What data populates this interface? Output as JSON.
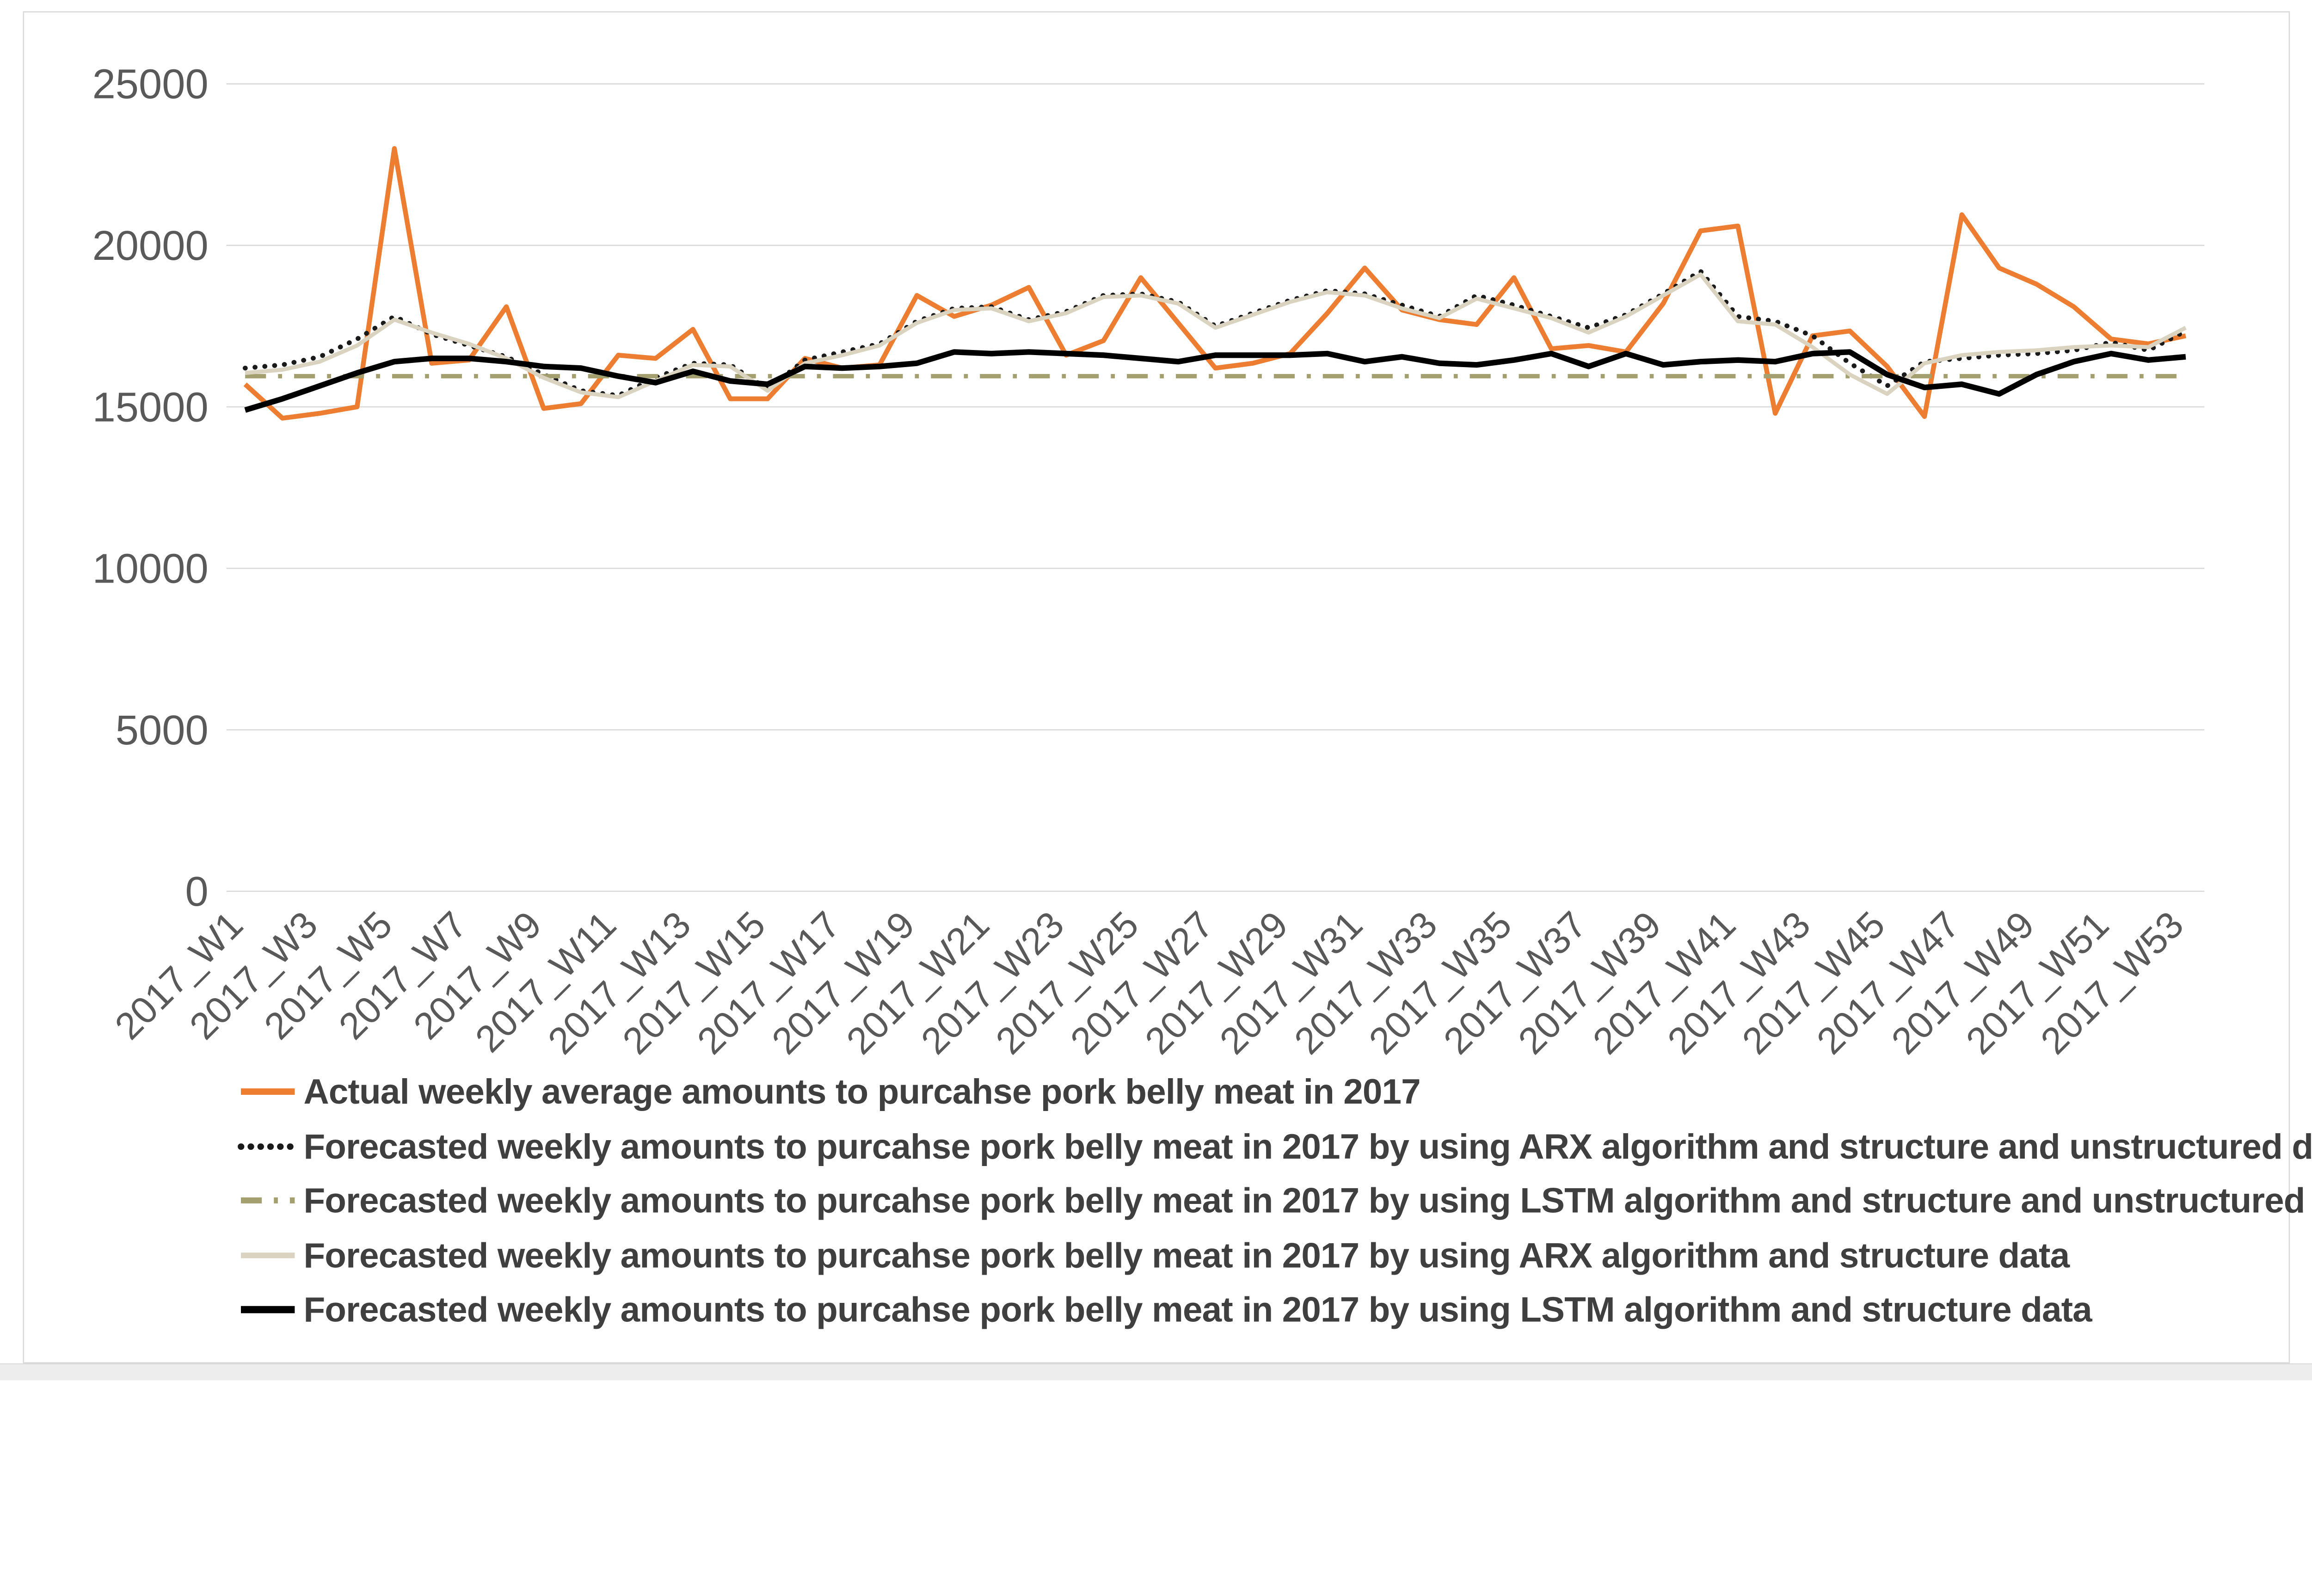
{
  "page": {
    "background_color": "#ffffff",
    "card_border_color": "#d9d9d9",
    "bottom_bar_color": "#ededed"
  },
  "chart_data": {
    "type": "line",
    "title": "",
    "xlabel": "",
    "ylabel": "",
    "grid": true,
    "grid_color": "#d9d9d9",
    "legend_position": "bottom-left",
    "axis_label_color": "#595959",
    "legend_text_color": "#3f3f3f",
    "y_axis": {
      "min": 0,
      "max": 25000,
      "tick_labels": [
        "25000",
        "20000",
        "15000",
        "10000",
        "5000",
        "0"
      ],
      "tick_values": [
        25000,
        20000,
        15000,
        10000,
        5000,
        0
      ]
    },
    "x_axis": {
      "categories": [
        "2017_W1",
        "2017_W2",
        "2017_W3",
        "2017_W4",
        "2017_W5",
        "2017_W6",
        "2017_W7",
        "2017_W8",
        "2017_W9",
        "2017_W10",
        "2017_W11",
        "2017_W12",
        "2017_W13",
        "2017_W14",
        "2017_W15",
        "2017_W16",
        "2017_W17",
        "2017_W18",
        "2017_W19",
        "2017_W20",
        "2017_W21",
        "2017_W22",
        "2017_W23",
        "2017_W24",
        "2017_W25",
        "2017_W26",
        "2017_W27",
        "2017_W28",
        "2017_W29",
        "2017_W30",
        "2017_W31",
        "2017_W32",
        "2017_W33",
        "2017_W34",
        "2017_W35",
        "2017_W36",
        "2017_W37",
        "2017_W38",
        "2017_W39",
        "2017_W40",
        "2017_W41",
        "2017_W42",
        "2017_W43",
        "2017_W44",
        "2017_W45",
        "2017_W46",
        "2017_W47",
        "2017_W48",
        "2017_W49",
        "2017_W50",
        "2017_W51",
        "2017_W52",
        "2017_W53"
      ],
      "tick_labels": [
        "2017_W1",
        "2017_W3",
        "2017_W5",
        "2017_W7",
        "2017_W9",
        "2017_W11",
        "2017_W13",
        "2017_W15",
        "2017_W17",
        "2017_W19",
        "2017_W21",
        "2017_W23",
        "2017_W25",
        "2017_W27",
        "2017_W29",
        "2017_W31",
        "2017_W33",
        "2017_W35",
        "2017_W37",
        "2017_W39",
        "2017_W41",
        "2017_W43",
        "2017_W45",
        "2017_W47",
        "2017_W49",
        "2017_W51",
        "2017_W53"
      ],
      "label_rotation_deg": -45
    },
    "series": [
      {
        "label": "Actual weekly average amounts to purcahse pork belly meat in 2017",
        "color": "#ED7D31",
        "line_style": "solid",
        "width": 12,
        "values": [
          15700,
          14650,
          14800,
          15000,
          23000,
          16350,
          16450,
          18100,
          14950,
          15100,
          16600,
          16500,
          17400,
          15250,
          15250,
          16500,
          16200,
          16300,
          18450,
          17800,
          18150,
          18700,
          16600,
          17050,
          19000,
          17600,
          16200,
          16350,
          16650,
          17900,
          19300,
          18000,
          17700,
          17550,
          19000,
          16800,
          16900,
          16700,
          18200,
          20450,
          20600,
          14800,
          17200,
          17350,
          16250,
          14700,
          20950,
          19300,
          18800,
          18100,
          17100,
          16950,
          17200
        ]
      },
      {
        "label": "Forecasted weekly amounts to purcahse pork belly meat in 2017 by using ARX algorithm and structure and unstructured data",
        "color": "#1a1a1a",
        "line_style": "dotted",
        "width": 12,
        "values": [
          16200,
          16300,
          16550,
          17100,
          17800,
          17250,
          16900,
          16550,
          16000,
          15500,
          15350,
          15900,
          16350,
          16300,
          15550,
          16450,
          16700,
          16950,
          17650,
          18050,
          18100,
          17700,
          17950,
          18450,
          18500,
          18250,
          17500,
          17900,
          18300,
          18600,
          18500,
          18150,
          17800,
          18450,
          18150,
          17800,
          17450,
          17850,
          18500,
          19200,
          17800,
          17650,
          17200,
          16350,
          15650,
          16400,
          16500,
          16600,
          16650,
          16750,
          17000,
          16750,
          17350
        ]
      },
      {
        "label": "Forecasted weekly amounts to purcahse pork belly meat in 2017 by using LSTM algorithm and structure and unstructured data",
        "color": "#A49F6E",
        "line_style": "dashdot",
        "width": 11,
        "values": [
          15950,
          15950,
          15950,
          15950,
          15950,
          15950,
          15950,
          15950,
          15950,
          15950,
          15950,
          15950,
          15950,
          15950,
          15950,
          15950,
          15950,
          15950,
          15950,
          15950,
          15950,
          15950,
          15950,
          15950,
          15950,
          15950,
          15950,
          15950,
          15950,
          15950,
          15950,
          15950,
          15950,
          15950,
          15950,
          15950,
          15950,
          15950,
          15950,
          15950,
          15950,
          15950,
          15950,
          15950,
          15950,
          15950,
          15950,
          15950,
          15950,
          15950,
          15950,
          15950,
          15950
        ]
      },
      {
        "label": "Forecasted weekly amounts to purcahse pork belly meat in 2017 by using ARX algorithm and structure data",
        "color": "#D9D3BF",
        "line_style": "solid",
        "width": 10,
        "values": [
          16050,
          16150,
          16400,
          16900,
          17700,
          17300,
          16950,
          16500,
          15900,
          15450,
          15300,
          15800,
          16300,
          16250,
          15500,
          16350,
          16600,
          16900,
          17600,
          18000,
          18050,
          17650,
          17900,
          18400,
          18450,
          18200,
          17450,
          17850,
          18250,
          18550,
          18450,
          18050,
          17750,
          18350,
          18050,
          17750,
          17300,
          17800,
          18450,
          19100,
          17650,
          17550,
          16850,
          16000,
          15400,
          16350,
          16600,
          16700,
          16750,
          16850,
          16900,
          16850,
          17450
        ]
      },
      {
        "label": "Forecasted weekly amounts to purcahse pork belly meat in 2017 by using LSTM algorithm and structure data",
        "color": "#000000",
        "line_style": "solid",
        "width": 14,
        "values": [
          14900,
          15250,
          15650,
          16050,
          16400,
          16500,
          16500,
          16400,
          16250,
          16200,
          15950,
          15750,
          16100,
          15800,
          15700,
          16250,
          16200,
          16250,
          16350,
          16700,
          16650,
          16700,
          16650,
          16600,
          16500,
          16400,
          16600,
          16600,
          16600,
          16650,
          16400,
          16550,
          16350,
          16300,
          16450,
          16650,
          16250,
          16650,
          16300,
          16400,
          16450,
          16400,
          16650,
          16700,
          16000,
          15600,
          15700,
          15400,
          16000,
          16400,
          16650,
          16450,
          16550
        ]
      }
    ]
  }
}
